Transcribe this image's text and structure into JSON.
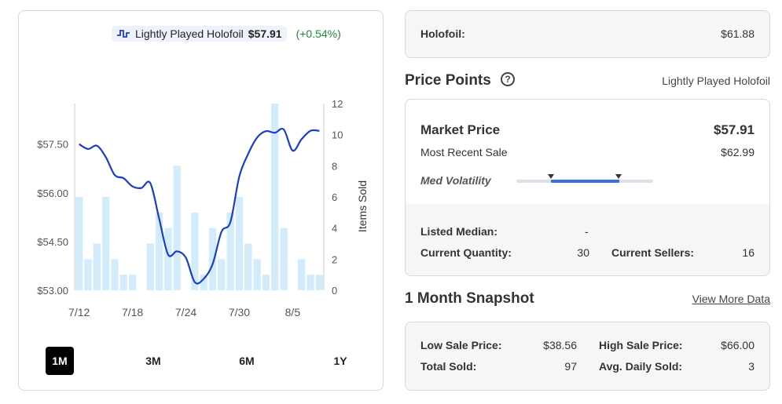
{
  "legend": {
    "label": "Lightly Played Holofoil",
    "price": "$57.91",
    "change": "(+0.54%)"
  },
  "chart_data": {
    "type": "line",
    "x_tick_labels": [
      "7/12",
      "7/18",
      "7/24",
      "7/30",
      "8/5"
    ],
    "y_left_ticks": [
      "$57.50",
      "$56.00",
      "$54.50",
      "$53.00"
    ],
    "y_left_range": [
      53.0,
      58.75
    ],
    "y_right_label": "Items Sold",
    "y_right_ticks": [
      "12",
      "10",
      "8",
      "6",
      "4",
      "2",
      "0"
    ],
    "y_right_range": [
      0,
      12
    ],
    "items_sold": [
      6,
      2,
      3,
      6,
      2,
      1,
      1,
      0,
      3,
      5,
      4,
      8,
      0,
      5,
      1,
      4,
      2,
      5,
      6,
      3,
      2,
      1,
      12,
      4,
      0,
      2,
      1,
      1
    ],
    "price_line": [
      57.5,
      57.35,
      57.45,
      57.1,
      56.55,
      56.45,
      56.2,
      56.15,
      56.3,
      55.2,
      54.1,
      54.2,
      54.0,
      53.25,
      53.35,
      53.8,
      54.8,
      55.1,
      56.5,
      57.2,
      57.7,
      57.9,
      57.85,
      57.95,
      57.3,
      57.65,
      57.91,
      57.91
    ],
    "series": [
      {
        "name": "Lightly Played Holofoil",
        "color": "#1a3ec7"
      },
      {
        "name": "Items Sold",
        "color": "#d3ecfb"
      }
    ]
  },
  "ranges": [
    "1M",
    "3M",
    "6M",
    "1Y"
  ],
  "holofoil": {
    "label": "Holofoil:",
    "value": "$61.88"
  },
  "price_points": {
    "title": "Price Points",
    "help": "?",
    "condition": "Lightly Played Holofoil",
    "market_price_label": "Market Price",
    "market_price": "$57.91",
    "recent_sale_label": "Most Recent Sale",
    "recent_sale": "$62.99",
    "volatility_label": "Med Volatility",
    "listed_median_label": "Listed Median:",
    "listed_median": "-",
    "current_quantity_label": "Current Quantity:",
    "current_quantity": "30",
    "current_sellers_label": "Current Sellers:",
    "current_sellers": "16"
  },
  "snapshot": {
    "title": "1 Month Snapshot",
    "link": "View More Data",
    "low_label": "Low Sale Price:",
    "low": "$38.56",
    "high_label": "High Sale Price:",
    "high": "$66.00",
    "total_label": "Total Sold:",
    "total": "97",
    "avg_label": "Avg. Daily Sold:",
    "avg": "3"
  },
  "colors": {
    "line": "#1a3ec7",
    "bar": "#d3ecfb",
    "change": "#1f8a3a",
    "volatility": "#3b6fe0"
  }
}
